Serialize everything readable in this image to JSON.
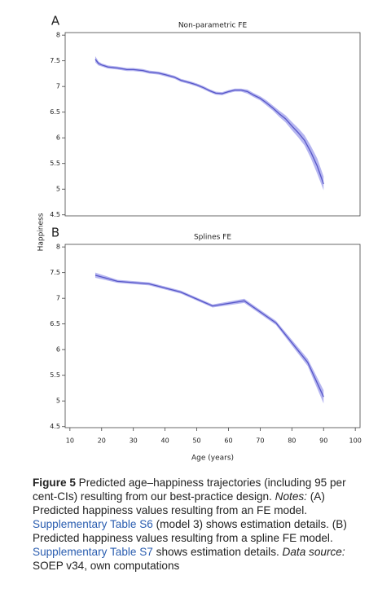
{
  "y_label": "Happiness",
  "chart_data": [
    {
      "type": "line",
      "panel": "A",
      "title": "Non-parametric FE",
      "color": "#5656c8",
      "band_color": "#a3a3ec",
      "xlim": [
        8.5,
        101.5
      ],
      "ylim": [
        4.48,
        8.05
      ],
      "yticks": [
        8,
        7.5,
        7,
        6.5,
        6,
        5.5,
        5,
        4.5
      ],
      "x": [
        18,
        19,
        20,
        22,
        25,
        28,
        30,
        33,
        35,
        38,
        40,
        43,
        45,
        48,
        50,
        52,
        54,
        56,
        58,
        60,
        62,
        64,
        66,
        68,
        70,
        72,
        74,
        76,
        78,
        80,
        82,
        84,
        86,
        88,
        90
      ],
      "values": [
        7.53,
        7.45,
        7.42,
        7.38,
        7.36,
        7.33,
        7.33,
        7.31,
        7.28,
        7.26,
        7.23,
        7.18,
        7.12,
        7.07,
        7.03,
        6.98,
        6.92,
        6.87,
        6.86,
        6.9,
        6.93,
        6.93,
        6.9,
        6.83,
        6.77,
        6.68,
        6.58,
        6.47,
        6.37,
        6.23,
        6.1,
        5.95,
        5.72,
        5.45,
        5.1
      ],
      "lower": [
        7.47,
        7.41,
        7.39,
        7.35,
        7.33,
        7.3,
        7.3,
        7.28,
        7.25,
        7.23,
        7.2,
        7.15,
        7.09,
        7.04,
        7.0,
        6.95,
        6.89,
        6.84,
        6.83,
        6.87,
        6.9,
        6.9,
        6.86,
        6.79,
        6.73,
        6.63,
        6.53,
        6.41,
        6.3,
        6.15,
        6.01,
        5.85,
        5.6,
        5.3,
        4.98
      ],
      "upper": [
        7.59,
        7.49,
        7.45,
        7.41,
        7.39,
        7.36,
        7.36,
        7.34,
        7.31,
        7.29,
        7.26,
        7.21,
        7.15,
        7.1,
        7.06,
        7.01,
        6.95,
        6.9,
        6.89,
        6.93,
        6.96,
        6.96,
        6.94,
        6.87,
        6.81,
        6.73,
        6.63,
        6.53,
        6.44,
        6.31,
        6.19,
        6.05,
        5.84,
        5.6,
        5.25
      ]
    },
    {
      "type": "line",
      "panel": "B",
      "title": "Splines FE",
      "color": "#5656c8",
      "band_color": "#a3a3ec",
      "xlabel": "Age (years)",
      "xlim": [
        8.5,
        101.5
      ],
      "ylim": [
        4.48,
        8.05
      ],
      "yticks": [
        8,
        7.5,
        7,
        6.5,
        6,
        5.5,
        5,
        4.5
      ],
      "xticks": [
        10,
        20,
        30,
        40,
        50,
        60,
        70,
        80,
        90,
        100
      ],
      "x": [
        18,
        25,
        35,
        45,
        55,
        65,
        75,
        85,
        90
      ],
      "values": [
        7.45,
        7.33,
        7.28,
        7.12,
        6.85,
        6.95,
        6.52,
        5.75,
        5.08
      ],
      "lower": [
        7.4,
        7.3,
        7.25,
        7.09,
        6.82,
        6.91,
        6.48,
        5.68,
        4.95
      ],
      "upper": [
        7.5,
        7.36,
        7.31,
        7.15,
        6.88,
        6.99,
        6.56,
        5.82,
        5.21
      ]
    }
  ],
  "caption": {
    "segments": [
      {
        "text": "Figure 5",
        "style": "bold"
      },
      {
        "text": " Predicted age–happiness trajectories (including 95 per cent-CIs) resulting from our best-practice design. ",
        "style": "plain"
      },
      {
        "text": "Notes:",
        "style": "italic"
      },
      {
        "text": " (A) Predicted happiness values resulting from an FE model. ",
        "style": "plain"
      },
      {
        "text": "Supplementary Table S6",
        "style": "link"
      },
      {
        "text": " (model 3) shows estimation details. (B) Predicted happiness values resulting from a spline FE model. ",
        "style": "plain"
      },
      {
        "text": "Supplementary Table S7",
        "style": "link"
      },
      {
        "text": " shows estimation details. ",
        "style": "plain"
      },
      {
        "text": "Data source:",
        "style": "italic"
      },
      {
        "text": " SOEP v34, own computations",
        "style": "plain"
      }
    ]
  }
}
